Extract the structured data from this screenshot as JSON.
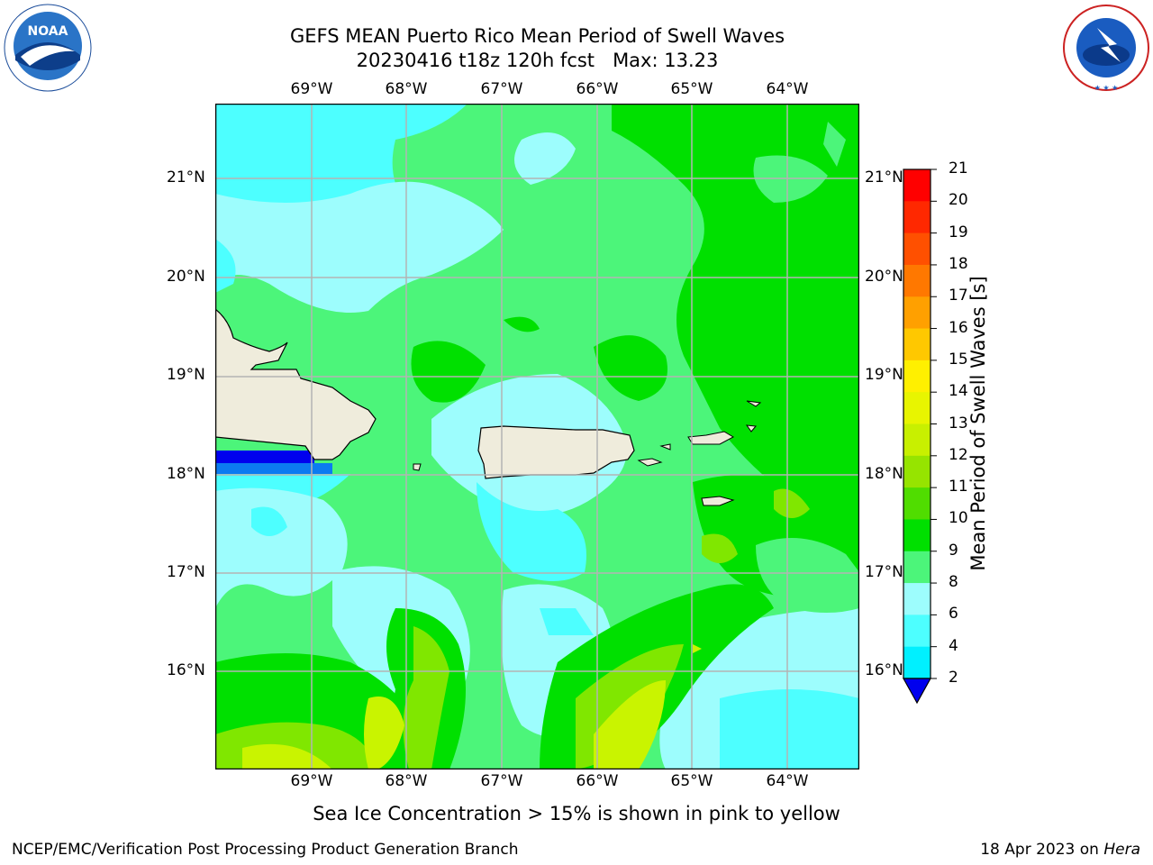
{
  "header": {
    "title_line1": "GEFS MEAN Puerto Rico Mean Period of Swell Waves",
    "title_line2": "20230416 t18z 120h fcst   Max: 13.23"
  },
  "logos": {
    "noaa_text": "NOAA",
    "noaa_ring": "NATIONAL OCEANIC AND ATMOSPHERIC ADMINISTRATION · U.S. DEPARTMENT OF COMMERCE",
    "nws_ring": "NATIONAL WEATHER SERVICE"
  },
  "map": {
    "lon_labels": [
      "69°W",
      "68°W",
      "67°W",
      "66°W",
      "65°W",
      "64°W"
    ],
    "lat_labels": [
      "21°N",
      "20°N",
      "19°N",
      "18°N",
      "17°N",
      "16°N"
    ],
    "land_color": "#efecdc",
    "ocean_colors": {
      "cyan_light": "#4dffff",
      "pale": "#9dfdfd",
      "light_green": "#4cf57a",
      "green": "#00e000",
      "yellow_green": "#80e700",
      "lime": "#c9f400",
      "blue": "#0000ee",
      "blue_mid": "#0c7bf0"
    }
  },
  "colorbar": {
    "label": "Mean Period of Swell Waves [s]",
    "ticks": [
      "21",
      "20",
      "19",
      "18",
      "17",
      "16",
      "15",
      "14",
      "13",
      "12",
      "11",
      "10",
      "9",
      "8",
      "6",
      "4",
      "2"
    ],
    "colors": [
      "#ff0000",
      "#ff2800",
      "#ff5000",
      "#ff7800",
      "#ffa000",
      "#ffc800",
      "#fff000",
      "#e8f500",
      "#c8f000",
      "#96e400",
      "#50dd00",
      "#00e000",
      "#4cf57a",
      "#9dfdfd",
      "#4dffff",
      "#00f0ff",
      "#0c7bf0",
      "#0000ee"
    ]
  },
  "notes": {
    "sea_ice": "Sea Ice Concentration > 15% is shown in pink to yellow"
  },
  "footer": {
    "left": "NCEP/EMC/Verification Post Processing Product Generation Branch",
    "right_date": "18 Apr 2023 on ",
    "right_host": "Hera"
  }
}
